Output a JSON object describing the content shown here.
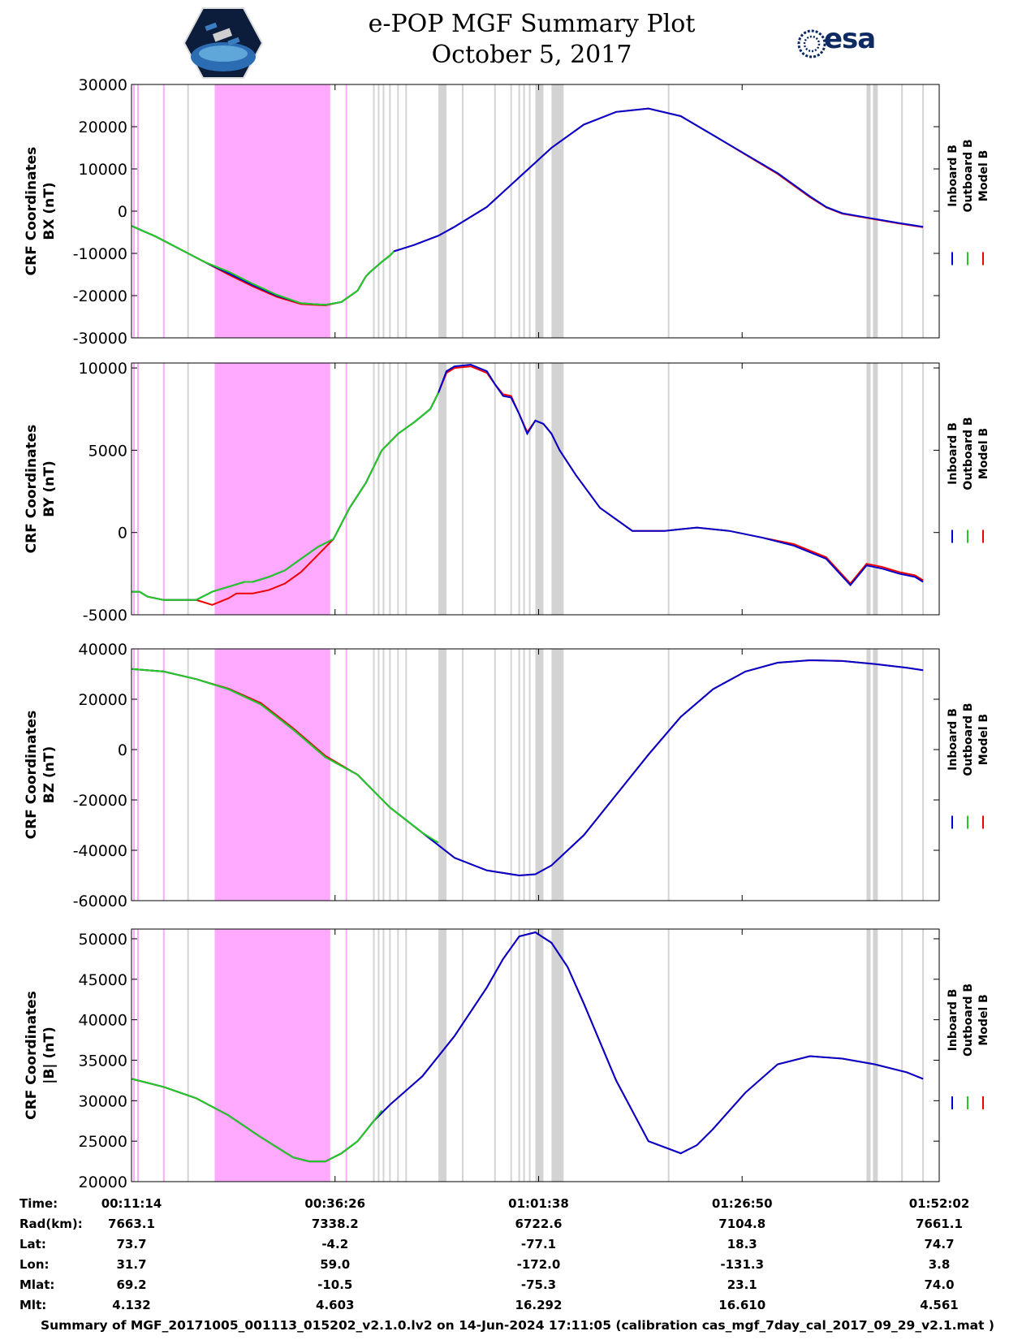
{
  "header": {
    "title_line1": "e-POP MGF Summary Plot",
    "title_line2": "October 5, 2017",
    "logo_left": "cassiope-mission-logo",
    "logo_right_text": "esa"
  },
  "colors": {
    "inboard": "#0000cc",
    "outboard": "#22cc22",
    "model": "#ee0000",
    "shade_gray": "#d3d3d3",
    "shade_magenta": "#ffaaff"
  },
  "legend": [
    "Inboard B",
    "Outboard B",
    "Model B"
  ],
  "chart_data": [
    {
      "type": "line",
      "ylabel_line1": "CRF Coordinates",
      "ylabel_line2": "BX (nT)",
      "ylim": [
        -30000,
        30000
      ],
      "yticks": [
        30000,
        20000,
        10000,
        0,
        -10000,
        -20000,
        -30000
      ],
      "ytick_labels": [
        "30000",
        "20000",
        "10000",
        "0",
        "-10000",
        "-20000",
        "-30000"
      ],
      "series": [
        {
          "name": "Inboard B",
          "x": [
            0,
            3,
            6,
            9,
            12,
            15,
            18,
            21,
            24,
            26,
            28,
            29,
            29.5,
            31,
            32,
            32.5,
            35,
            38,
            40,
            44,
            48,
            52,
            56,
            60,
            64,
            68,
            72,
            76,
            80,
            84,
            86,
            88,
            91,
            95,
            98
          ],
          "y": [
            -3500,
            -6000,
            -9000,
            -12000,
            -14700,
            -17500,
            -20000,
            -21800,
            -22200,
            -21500,
            -18800,
            -15500,
            -14500,
            -12000,
            -10500,
            -9500,
            -8000,
            -5800,
            -3700,
            1000,
            8000,
            15000,
            20500,
            23500,
            24300,
            22500,
            18000,
            13500,
            9000,
            3500,
            1000,
            -500,
            -1500,
            -2800,
            -3700
          ]
        },
        {
          "name": "Outboard B",
          "x": [
            0,
            3,
            6,
            9,
            12,
            15,
            18,
            21,
            24,
            26,
            28,
            29,
            29.5,
            31,
            32,
            32.5
          ],
          "y": [
            -3500,
            -6000,
            -9000,
            -12000,
            -14300,
            -17200,
            -19800,
            -21800,
            -22200,
            -21500,
            -18800,
            -15500,
            -14500,
            -12000,
            -10500,
            -9500
          ]
        },
        {
          "name": "Model B",
          "x": [
            0,
            3,
            6,
            9,
            12,
            15,
            18,
            21,
            24,
            26,
            28,
            29,
            29.5,
            31,
            32,
            32.5,
            35,
            38,
            40,
            44,
            48,
            52,
            56,
            60,
            64,
            68,
            72,
            76,
            80,
            84,
            86,
            88,
            91,
            95,
            98
          ],
          "y": [
            -3500,
            -6000,
            -9000,
            -12000,
            -15000,
            -17800,
            -20300,
            -22000,
            -22300,
            -21500,
            -18800,
            -15500,
            -14500,
            -12000,
            -10500,
            -9500,
            -8000,
            -5800,
            -3700,
            1000,
            8000,
            15000,
            20500,
            23500,
            24300,
            22500,
            18000,
            13400,
            8800,
            3300,
            900,
            -600,
            -1600,
            -2900,
            -3800
          ]
        }
      ]
    },
    {
      "type": "line",
      "ylabel_line1": "CRF Coordinates",
      "ylabel_line2": "BY (nT)",
      "ylim": [
        -5000,
        10300
      ],
      "yticks": [
        10000,
        5000,
        0,
        -5000
      ],
      "ytick_labels": [
        "10000",
        "5000",
        "0",
        "-5000"
      ],
      "series": [
        {
          "name": "Inboard B",
          "x": [
            0,
            1,
            2,
            4,
            6,
            8,
            10,
            12,
            14,
            15,
            17,
            19,
            21,
            23,
            25,
            27,
            29,
            31,
            33,
            35,
            37,
            38,
            39,
            40,
            42,
            44,
            45,
            46,
            47,
            48,
            49,
            50,
            51,
            52,
            53,
            55,
            58,
            62,
            66,
            68,
            70,
            74,
            78,
            82,
            86,
            89,
            91,
            93,
            95,
            97,
            98
          ],
          "y": [
            -3600,
            -3600,
            -3900,
            -4100,
            -4100,
            -4100,
            -3600,
            -3300,
            -3000,
            -3000,
            -2700,
            -2300,
            -1600,
            -900,
            -400,
            1500,
            3000,
            5000,
            6000,
            6700,
            7500,
            8500,
            9800,
            10100,
            10200,
            9800,
            9000,
            8300,
            8200,
            7200,
            6000,
            6800,
            6600,
            6000,
            5000,
            3500,
            1500,
            100,
            100,
            200,
            300,
            100,
            -300,
            -800,
            -1600,
            -3200,
            -2000,
            -2200,
            -2500,
            -2700,
            -3000
          ]
        },
        {
          "name": "Outboard B",
          "x": [
            0,
            1,
            2,
            4,
            6,
            8,
            10,
            12,
            14,
            15,
            17,
            19,
            21,
            23,
            25,
            27,
            29,
            31,
            33,
            35,
            37,
            38
          ],
          "y": [
            -3600,
            -3600,
            -3900,
            -4100,
            -4100,
            -4100,
            -3600,
            -3300,
            -3000,
            -3000,
            -2700,
            -2300,
            -1600,
            -900,
            -400,
            1500,
            3000,
            5000,
            6000,
            6700,
            7500,
            8500
          ]
        },
        {
          "name": "Model B",
          "x": [
            0,
            1,
            2,
            4,
            6,
            8,
            10,
            12,
            13,
            14,
            15,
            17,
            19,
            21,
            23,
            25,
            27,
            29,
            31,
            33,
            35,
            37,
            38,
            39,
            40,
            42,
            44,
            45,
            46,
            47,
            48,
            49,
            50,
            51,
            52,
            53,
            55,
            58,
            62,
            66,
            68,
            70,
            74,
            78,
            82,
            86,
            89,
            91,
            93,
            95,
            97,
            98
          ],
          "y": [
            -3600,
            -3600,
            -3900,
            -4100,
            -4100,
            -4100,
            -4400,
            -4000,
            -3700,
            -3700,
            -3700,
            -3500,
            -3100,
            -2400,
            -1400,
            -400,
            1500,
            3000,
            5000,
            6000,
            6700,
            7500,
            8500,
            9700,
            10000,
            10100,
            9700,
            9000,
            8400,
            8300,
            7200,
            6100,
            6800,
            6600,
            6000,
            5000,
            3500,
            1500,
            100,
            100,
            200,
            300,
            100,
            -300,
            -700,
            -1500,
            -3100,
            -1900,
            -2100,
            -2400,
            -2600,
            -2900
          ]
        }
      ]
    },
    {
      "type": "line",
      "ylabel_line1": "CRF Coordinates",
      "ylabel_line2": "BZ (nT)",
      "ylim": [
        -60000,
        40000
      ],
      "yticks": [
        40000,
        20000,
        0,
        -20000,
        -40000,
        -60000
      ],
      "ytick_labels": [
        "40000",
        "20000",
        "0",
        "-20000",
        "-40000",
        "-60000"
      ],
      "series": [
        {
          "name": "Inboard B",
          "x": [
            0,
            4,
            8,
            12,
            16,
            20,
            24,
            28,
            32,
            36,
            40,
            44,
            48,
            50,
            52,
            56,
            60,
            64,
            68,
            72,
            76,
            80,
            84,
            88,
            92,
            96,
            98
          ],
          "y": [
            32000,
            31000,
            28000,
            24000,
            18000,
            8000,
            -3000,
            -10000,
            -23000,
            -33000,
            -43000,
            -48000,
            -50000,
            -49500,
            -46000,
            -34000,
            -18000,
            -2000,
            13000,
            24000,
            31000,
            34500,
            35500,
            35200,
            34000,
            32500,
            31500
          ]
        },
        {
          "name": "Outboard B",
          "x": [
            0,
            4,
            8,
            12,
            16,
            20,
            24,
            28,
            32,
            36,
            38
          ],
          "y": [
            32000,
            31000,
            28000,
            24000,
            18000,
            8000,
            -3000,
            -10000,
            -23000,
            -33000,
            -37000
          ]
        },
        {
          "name": "Model B",
          "x": [
            0,
            4,
            8,
            12,
            16,
            20,
            24,
            28,
            32,
            36,
            40,
            44,
            48,
            50,
            52,
            56,
            60,
            64,
            68,
            72,
            76,
            80,
            84,
            88,
            92,
            96,
            98
          ],
          "y": [
            32000,
            31000,
            28000,
            24200,
            18500,
            8500,
            -2500,
            -10000,
            -23000,
            -33000,
            -43000,
            -48000,
            -50000,
            -49500,
            -46000,
            -34000,
            -18000,
            -2000,
            13000,
            24000,
            31000,
            34500,
            35500,
            35200,
            34000,
            32500,
            31500
          ]
        }
      ]
    },
    {
      "type": "line",
      "ylabel_line1": "CRF Coordinates",
      "ylabel_line2": "|B| (nT)",
      "ylim": [
        20000,
        51200
      ],
      "yticks": [
        50000,
        45000,
        40000,
        35000,
        30000,
        25000,
        20000
      ],
      "ytick_labels": [
        "50000",
        "45000",
        "40000",
        "35000",
        "30000",
        "25000",
        "20000"
      ],
      "series": [
        {
          "name": "Inboard B",
          "x": [
            0,
            4,
            8,
            12,
            16,
            20,
            22,
            24,
            26,
            28,
            30,
            32,
            36,
            40,
            44,
            46,
            48,
            50,
            52,
            54,
            56,
            60,
            64,
            68,
            70,
            72,
            76,
            80,
            84,
            88,
            92,
            96,
            98
          ],
          "y": [
            32700,
            31700,
            30300,
            28200,
            25500,
            23000,
            22500,
            22500,
            23500,
            25000,
            27500,
            29500,
            33000,
            38000,
            44000,
            47500,
            50300,
            50800,
            49500,
            46500,
            42000,
            32500,
            25000,
            23500,
            24500,
            26500,
            31000,
            34500,
            35500,
            35200,
            34500,
            33500,
            32700
          ]
        },
        {
          "name": "Outboard B",
          "x": [
            0,
            4,
            8,
            12,
            16,
            20,
            22,
            24,
            26,
            28,
            30,
            31
          ],
          "y": [
            32700,
            31700,
            30300,
            28200,
            25500,
            23000,
            22500,
            22500,
            23500,
            25000,
            27500,
            28800
          ]
        },
        {
          "name": "Model B",
          "x": [
            0,
            4,
            8,
            12,
            16,
            20,
            22,
            24,
            26,
            28,
            30,
            32,
            36,
            40,
            44,
            46,
            48,
            50,
            52,
            54,
            56,
            60,
            64,
            68,
            70,
            72,
            76,
            80,
            84,
            88,
            92,
            96,
            98
          ],
          "y": [
            32700,
            31700,
            30300,
            28200,
            25500,
            23000,
            22500,
            22500,
            23500,
            25000,
            27500,
            29500,
            33000,
            38000,
            44000,
            47500,
            50300,
            50800,
            49500,
            46500,
            42000,
            32500,
            25000,
            23500,
            24500,
            26500,
            31000,
            34500,
            35500,
            35200,
            34500,
            33500,
            32700
          ]
        }
      ]
    }
  ],
  "shading": {
    "magenta_bands": [
      [
        10.3,
        24.6
      ]
    ],
    "magenta_lines": [
      0.3,
      0.8,
      4.0,
      26.6
    ],
    "gray_bands": [
      [
        38.0,
        39.0
      ],
      [
        50.0,
        51.0
      ],
      [
        52.0,
        53.5
      ],
      [
        91.0,
        91.5
      ],
      [
        91.8,
        92.4
      ]
    ],
    "gray_lines": [
      7.0,
      30.0,
      30.6,
      31.2,
      32.0,
      33.0,
      34.0,
      41.0,
      45.0,
      47.0,
      48.0,
      48.6,
      49.3,
      66.5,
      95.4,
      98.0
    ]
  },
  "info_table": {
    "labels": [
      "Time:",
      "Rad(km):",
      "Lat:",
      "Lon:",
      "Mlat:",
      "Mlt:"
    ],
    "columns": [
      [
        "00:11:14",
        "7663.1",
        "73.7",
        "31.7",
        "69.2",
        "4.132"
      ],
      [
        "00:36:26",
        "7338.2",
        "-4.2",
        "59.0",
        "-10.5",
        "4.603"
      ],
      [
        "01:01:38",
        "6722.6",
        "-77.1",
        "-172.0",
        "-75.3",
        "16.292"
      ],
      [
        "01:26:50",
        "7104.8",
        "18.3",
        "-131.3",
        "23.1",
        "16.610"
      ],
      [
        "01:52:02",
        "7661.1",
        "74.7",
        "3.8",
        "74.0",
        "4.561"
      ]
    ]
  },
  "footer": "Summary of MGF_20171005_001113_015202_v2.1.0.lv2 on 14-Jun-2024 17:11:05 (calibration cas_mgf_7day_cal_2017_09_29_v2.1.mat )"
}
